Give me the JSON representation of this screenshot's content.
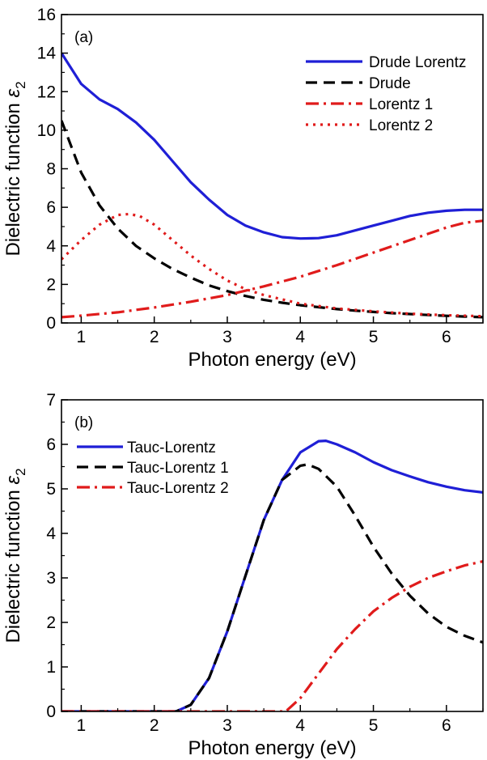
{
  "chart_data": [
    {
      "type": "line",
      "panel_label": "(a)",
      "xlabel": "Photon energy (eV)",
      "ylabel_main": "Dielectric function ",
      "ylabel_symbol": "ε",
      "ylabel_sub": "2",
      "xlim": [
        0.73,
        6.5
      ],
      "ylim": [
        0,
        16
      ],
      "xticks": [
        1,
        2,
        3,
        4,
        5,
        6
      ],
      "yticks": [
        0,
        2,
        4,
        6,
        8,
        10,
        12,
        14,
        16
      ],
      "legend_position": "top-right",
      "series": [
        {
          "name": "Drude Lorentz",
          "color": "#1f1fd6",
          "dash": "solid",
          "x": [
            0.73,
            1.0,
            1.25,
            1.5,
            1.75,
            2.0,
            2.25,
            2.5,
            2.75,
            3.0,
            3.25,
            3.5,
            3.75,
            4.0,
            4.25,
            4.5,
            4.75,
            5.0,
            5.25,
            5.5,
            5.75,
            6.0,
            6.25,
            6.5
          ],
          "y": [
            14.0,
            12.4,
            11.6,
            11.1,
            10.4,
            9.5,
            8.4,
            7.3,
            6.4,
            5.6,
            5.05,
            4.7,
            4.45,
            4.38,
            4.4,
            4.55,
            4.8,
            5.05,
            5.3,
            5.55,
            5.72,
            5.82,
            5.87,
            5.87
          ]
        },
        {
          "name": "Drude",
          "color": "#000000",
          "dash": "dash",
          "x": [
            0.73,
            1.0,
            1.25,
            1.5,
            1.75,
            2.0,
            2.25,
            2.5,
            2.75,
            3.0,
            3.25,
            3.5,
            3.75,
            4.0,
            4.25,
            4.5,
            4.75,
            5.0,
            5.25,
            5.5,
            5.75,
            6.0,
            6.25,
            6.5
          ],
          "y": [
            10.5,
            7.8,
            6.1,
            4.9,
            4.0,
            3.35,
            2.8,
            2.35,
            1.95,
            1.65,
            1.4,
            1.2,
            1.05,
            0.92,
            0.82,
            0.72,
            0.64,
            0.57,
            0.51,
            0.46,
            0.41,
            0.37,
            0.33,
            0.3
          ]
        },
        {
          "name": "Lorentz 1",
          "color": "#e01b1b",
          "dash": "dashdot",
          "x": [
            0.73,
            1.0,
            1.5,
            2.0,
            2.5,
            3.0,
            3.5,
            4.0,
            4.5,
            5.0,
            5.5,
            6.0,
            6.25,
            6.5
          ],
          "y": [
            0.3,
            0.38,
            0.55,
            0.8,
            1.1,
            1.45,
            1.9,
            2.4,
            3.0,
            3.65,
            4.3,
            4.95,
            5.2,
            5.3
          ]
        },
        {
          "name": "Lorentz 2",
          "color": "#e01b1b",
          "dash": "dot",
          "x": [
            0.73,
            1.0,
            1.25,
            1.5,
            1.65,
            1.8,
            2.0,
            2.25,
            2.5,
            2.75,
            3.0,
            3.25,
            3.5,
            4.0,
            4.5,
            5.0,
            5.5,
            6.0,
            6.5
          ],
          "y": [
            3.3,
            4.3,
            5.1,
            5.6,
            5.65,
            5.55,
            5.1,
            4.3,
            3.5,
            2.8,
            2.2,
            1.75,
            1.45,
            1.0,
            0.75,
            0.6,
            0.48,
            0.4,
            0.35
          ]
        }
      ]
    },
    {
      "type": "line",
      "panel_label": "(b)",
      "xlabel": "Photon energy (eV)",
      "ylabel_main": "Dielectric function ",
      "ylabel_symbol": "ε",
      "ylabel_sub": "2",
      "xlim": [
        0.73,
        6.5
      ],
      "ylim": [
        0,
        7
      ],
      "xticks": [
        1,
        2,
        3,
        4,
        5,
        6
      ],
      "yticks": [
        0,
        1,
        2,
        3,
        4,
        5,
        6,
        7
      ],
      "legend_position": "top-left",
      "series": [
        {
          "name": "Tauc-Lorentz",
          "color": "#1f1fd6",
          "dash": "solid",
          "x": [
            0.73,
            2.3,
            2.5,
            2.75,
            3.0,
            3.25,
            3.5,
            3.75,
            4.0,
            4.25,
            4.35,
            4.5,
            4.75,
            5.0,
            5.25,
            5.5,
            5.75,
            6.0,
            6.25,
            6.5
          ],
          "y": [
            0,
            0,
            0.15,
            0.75,
            1.8,
            3.05,
            4.3,
            5.2,
            5.82,
            6.07,
            6.08,
            6.0,
            5.82,
            5.6,
            5.42,
            5.28,
            5.15,
            5.05,
            4.97,
            4.92
          ]
        },
        {
          "name": "Tauc-Lorentz 1",
          "color": "#000000",
          "dash": "dash",
          "x": [
            0.73,
            2.3,
            2.5,
            2.75,
            3.0,
            3.25,
            3.5,
            3.75,
            4.0,
            4.1,
            4.25,
            4.5,
            4.75,
            5.0,
            5.25,
            5.5,
            5.75,
            6.0,
            6.25,
            6.5
          ],
          "y": [
            0,
            0,
            0.15,
            0.75,
            1.8,
            3.05,
            4.3,
            5.2,
            5.52,
            5.55,
            5.45,
            5.05,
            4.4,
            3.7,
            3.1,
            2.6,
            2.2,
            1.9,
            1.7,
            1.55
          ]
        },
        {
          "name": "Tauc-Lorentz 2",
          "color": "#e01b1b",
          "dash": "dashdot",
          "x": [
            0.73,
            3.8,
            4.0,
            4.25,
            4.5,
            4.75,
            5.0,
            5.25,
            5.5,
            5.75,
            6.0,
            6.25,
            6.5
          ],
          "y": [
            0,
            0,
            0.3,
            0.85,
            1.4,
            1.85,
            2.25,
            2.55,
            2.8,
            3.0,
            3.15,
            3.28,
            3.37
          ]
        }
      ]
    }
  ]
}
